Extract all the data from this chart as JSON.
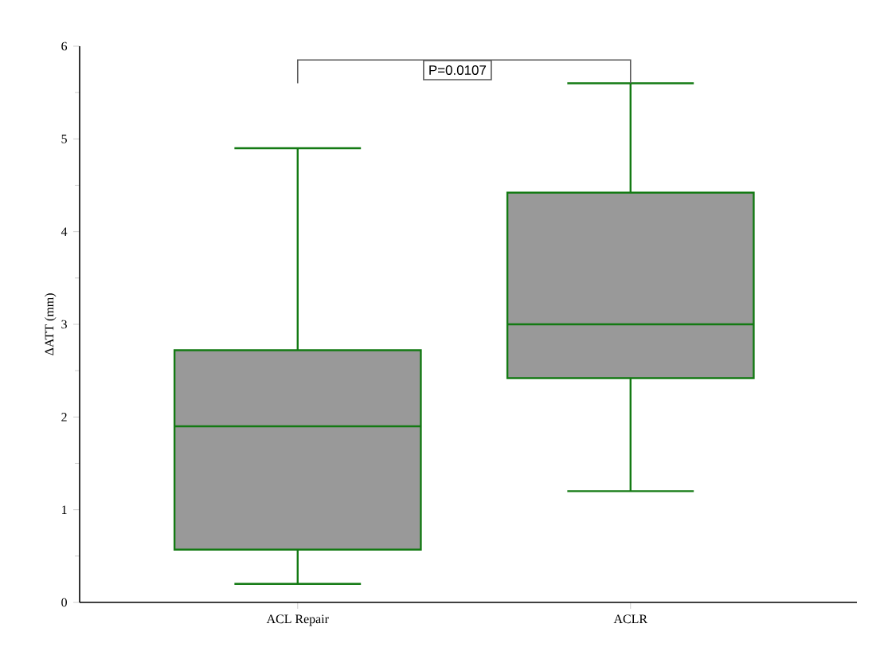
{
  "chart_data": {
    "type": "box",
    "ylabel": "ΔATT (mm)",
    "categories": [
      "ACL Repair",
      "ACLR"
    ],
    "color": "#137a13",
    "boxes": [
      {
        "low": 0.2,
        "q1": 0.57,
        "median": 1.9,
        "q3": 2.72,
        "high": 4.9
      },
      {
        "low": 1.2,
        "q1": 2.42,
        "median": 3.0,
        "q3": 4.42,
        "high": 5.6
      }
    ],
    "ylim": [
      0,
      6
    ],
    "yticks": [
      0,
      1,
      2,
      3,
      4,
      5,
      6
    ],
    "annotations": [
      "P=0.0107"
    ]
  }
}
